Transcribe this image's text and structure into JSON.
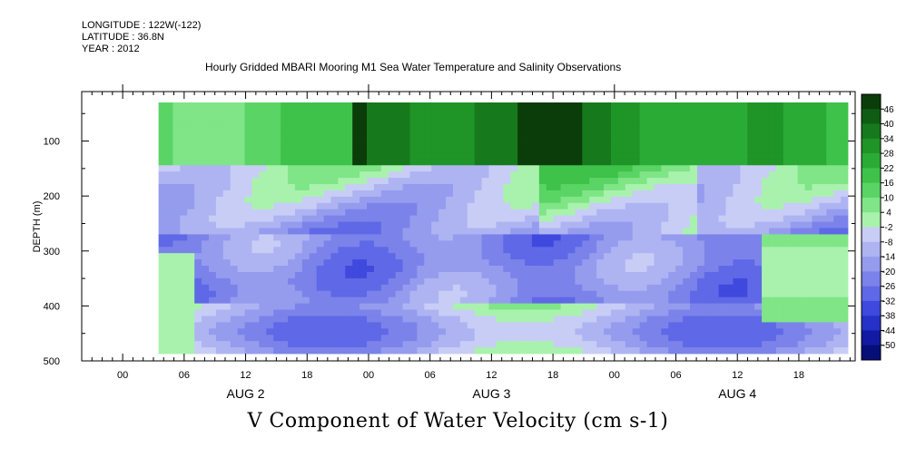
{
  "meta": {
    "longitude": "LONGITUDE : 122W(-122)",
    "latitude": "LATITUDE : 36.8N",
    "year": "YEAR : 2012"
  },
  "chart_data": {
    "type": "heatmap",
    "title": "Hourly Gridded MBARI Mooring M1 Sea Water Temperature and Salinity Observations",
    "xlabel": "V Component of Water Velocity (cm s-1)",
    "ylabel": "DEPTH (m)",
    "y_ticks": [
      100,
      200,
      300,
      400,
      500
    ],
    "ylim": [
      500,
      10
    ],
    "x_hour_ticks": [
      "00",
      "06",
      "12",
      "18",
      "00",
      "06",
      "12",
      "18",
      "00",
      "06",
      "12",
      "18"
    ],
    "x_date_labels": [
      "AUG 2",
      "AUG 3",
      "AUG 4"
    ],
    "x_range_hours": [
      -4,
      71.5
    ],
    "data_start_hour": 3.5,
    "colorbar": {
      "levels": [
        46,
        40,
        34,
        28,
        22,
        16,
        10,
        4,
        -2,
        -8,
        -14,
        -20,
        -26,
        -32,
        -38,
        -44,
        -50
      ],
      "colors": [
        "#0b3d0b",
        "#0f5c14",
        "#167a1c",
        "#1f9427",
        "#2aab35",
        "#3fc24a",
        "#5ad464",
        "#7fe587",
        "#a9f2ad",
        "#c8cdf6",
        "#aeb4f2",
        "#959cee",
        "#7b83ea",
        "#5f68e6",
        "#3f49de",
        "#2631c8",
        "#121aa3",
        "#060e78"
      ]
    },
    "field_description_rows": [
      {
        "depth_range": [
          20,
          150
        ],
        "regime": "positive",
        "approx_value": 18
      },
      {
        "depth_range": [
          150,
          260
        ],
        "regime": "mixed",
        "approx_value": 0
      },
      {
        "depth_range": [
          260,
          390
        ],
        "regime": "negative",
        "approx_value": -18
      },
      {
        "depth_range": [
          390,
          480
        ],
        "regime": "mixed",
        "approx_value": -6
      }
    ]
  }
}
